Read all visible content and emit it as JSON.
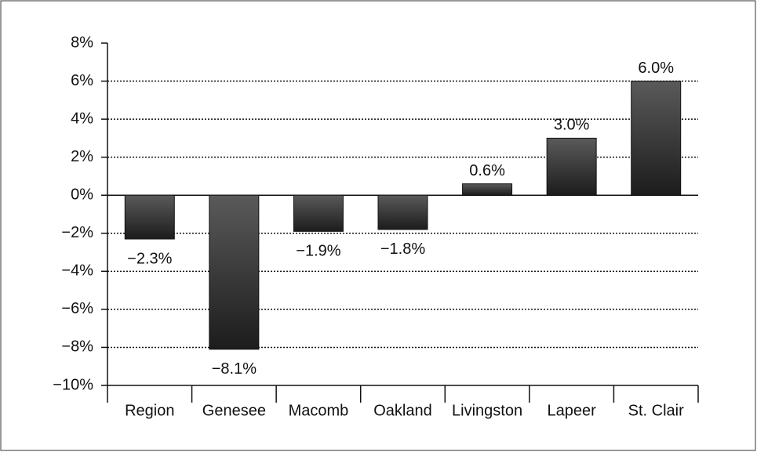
{
  "chart_data": {
    "type": "bar",
    "categories": [
      "Region",
      "Genesee",
      "Macomb",
      "Oakland",
      "Livingston",
      "Lapeer",
      "St. Clair"
    ],
    "values": [
      -2.3,
      -8.1,
      -1.9,
      -1.8,
      0.6,
      3.0,
      6.0
    ],
    "value_labels": [
      "−2.3%",
      "−8.1%",
      "−1.9%",
      "−1.8%",
      "0.6%",
      "3.0%",
      "6.0%"
    ],
    "color": "#333333",
    "ylim": [
      -10,
      8
    ],
    "yticks": [
      {
        "value": -10,
        "label": "−10%"
      },
      {
        "value": -8,
        "label": "−8%"
      },
      {
        "value": -6,
        "label": "−6%"
      },
      {
        "value": -4,
        "label": "−4%"
      },
      {
        "value": -2,
        "label": "−2%"
      },
      {
        "value": 0,
        "label": "0%"
      },
      {
        "value": 2,
        "label": "2%"
      },
      {
        "value": 4,
        "label": "4%"
      },
      {
        "value": 6,
        "label": "6%"
      },
      {
        "value": 8,
        "label": "8%"
      }
    ],
    "grid": true
  }
}
